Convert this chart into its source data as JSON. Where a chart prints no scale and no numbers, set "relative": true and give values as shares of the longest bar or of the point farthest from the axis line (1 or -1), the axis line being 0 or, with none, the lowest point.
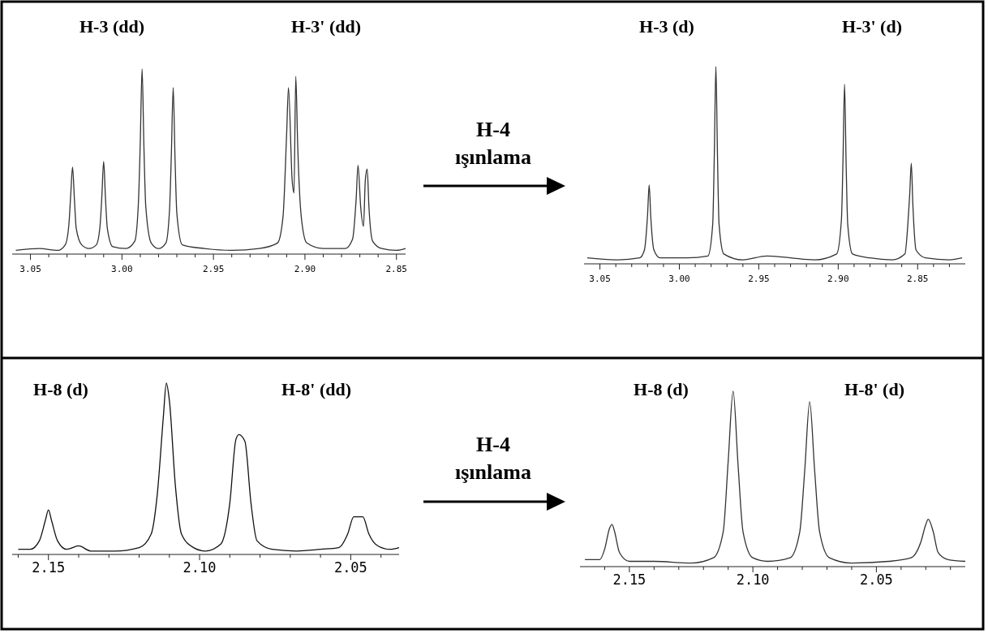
{
  "chart_data": [
    {
      "type": "line",
      "relative": true,
      "color": "#333333",
      "x": [
        3.058,
        3.045,
        3.035,
        3.031,
        3.029,
        3.028,
        3.027,
        3.026,
        3.025,
        3.022,
        3.018,
        3.014,
        3.012,
        3.011,
        3.01,
        3.009,
        3.008,
        3.005,
        2.998,
        2.993,
        2.991,
        2.99,
        2.989,
        2.988,
        2.987,
        2.984,
        2.98,
        2.976,
        2.974,
        2.973,
        2.972,
        2.971,
        2.97,
        2.967,
        2.955,
        2.94,
        2.925,
        2.915,
        2.912,
        2.91,
        2.909,
        2.907,
        2.906,
        2.905,
        2.904,
        2.902,
        2.899,
        2.89,
        2.878,
        2.874,
        2.872,
        2.871,
        2.8695,
        2.868,
        2.867,
        2.866,
        2.865,
        2.863,
        2.858,
        2.85,
        2.845
      ],
      "values": [
        0.02,
        0.03,
        0.02,
        0.05,
        0.16,
        0.32,
        0.47,
        0.3,
        0.14,
        0.05,
        0.03,
        0.05,
        0.15,
        0.31,
        0.5,
        0.3,
        0.14,
        0.04,
        0.03,
        0.07,
        0.28,
        0.6,
        1.0,
        0.58,
        0.26,
        0.06,
        0.03,
        0.06,
        0.24,
        0.54,
        0.9,
        0.52,
        0.22,
        0.05,
        0.03,
        0.02,
        0.03,
        0.06,
        0.2,
        0.65,
        0.9,
        0.4,
        0.33,
        0.96,
        0.6,
        0.2,
        0.06,
        0.03,
        0.03,
        0.08,
        0.3,
        0.48,
        0.25,
        0.15,
        0.4,
        0.46,
        0.25,
        0.07,
        0.03,
        0.02,
        0.03
      ],
      "xlim": [
        3.06,
        2.845
      ],
      "xticks": [
        3.05,
        {
          "value": 3.04,
          "label": null
        },
        {
          "value": 3.03,
          "label": null
        },
        {
          "value": 3.02,
          "label": null
        },
        {
          "value": 3.01,
          "label": null
        },
        {
          "value": 3.0,
          "label": "3.00"
        },
        {
          "value": 2.99,
          "label": null
        },
        {
          "value": 2.98,
          "label": null
        },
        {
          "value": 2.97,
          "label": null
        },
        {
          "value": 2.96,
          "label": null
        },
        2.95,
        {
          "value": 2.94,
          "label": null
        },
        {
          "value": 2.93,
          "label": null
        },
        {
          "value": 2.92,
          "label": null
        },
        {
          "value": 2.91,
          "label": null
        },
        {
          "value": 2.9,
          "label": "2.90"
        },
        {
          "value": 2.89,
          "label": null
        },
        {
          "value": 2.88,
          "label": null
        },
        {
          "value": 2.87,
          "label": null
        },
        {
          "value": 2.86,
          "label": null
        },
        2.85
      ],
      "annotations": [
        "H-3 (dd)",
        "H-3' (dd)"
      ]
    },
    {
      "type": "line",
      "relative": true,
      "color": "#333333",
      "x": [
        3.058,
        3.04,
        3.025,
        3.022,
        3.02,
        3.019,
        3.018,
        3.016,
        3.012,
        2.995,
        2.982,
        2.979,
        2.978,
        2.977,
        2.976,
        2.975,
        2.972,
        2.96,
        2.945,
        2.93,
        2.915,
        2.901,
        2.898,
        2.897,
        2.896,
        2.895,
        2.894,
        2.891,
        2.88,
        2.866,
        2.858,
        2.856,
        2.855,
        2.854,
        2.853,
        2.851,
        2.845,
        2.83,
        2.822
      ],
      "values": [
        0.03,
        0.02,
        0.03,
        0.07,
        0.25,
        0.4,
        0.24,
        0.07,
        0.03,
        0.03,
        0.04,
        0.2,
        0.55,
        1.0,
        0.55,
        0.2,
        0.05,
        0.02,
        0.04,
        0.03,
        0.02,
        0.05,
        0.22,
        0.52,
        0.91,
        0.5,
        0.2,
        0.05,
        0.03,
        0.02,
        0.05,
        0.22,
        0.35,
        0.51,
        0.3,
        0.07,
        0.03,
        0.02,
        0.03
      ],
      "xlim": [
        3.06,
        2.82
      ],
      "xticks": [
        3.05,
        {
          "value": 3.04,
          "label": null
        },
        {
          "value": 3.03,
          "label": null
        },
        {
          "value": 3.02,
          "label": null
        },
        {
          "value": 3.01,
          "label": null
        },
        {
          "value": 3.0,
          "label": "3.00"
        },
        {
          "value": 2.99,
          "label": null
        },
        {
          "value": 2.98,
          "label": null
        },
        {
          "value": 2.97,
          "label": null
        },
        {
          "value": 2.96,
          "label": null
        },
        2.95,
        {
          "value": 2.94,
          "label": null
        },
        {
          "value": 2.93,
          "label": null
        },
        {
          "value": 2.92,
          "label": null
        },
        {
          "value": 2.91,
          "label": null
        },
        {
          "value": 2.9,
          "label": "2.90"
        },
        {
          "value": 2.89,
          "label": null
        },
        {
          "value": 2.88,
          "label": null
        },
        {
          "value": 2.87,
          "label": null
        },
        {
          "value": 2.86,
          "label": null
        },
        2.85,
        {
          "value": 2.84,
          "label": null
        },
        {
          "value": 2.83,
          "label": null
        }
      ],
      "annotations": [
        "H-4",
        "ışınlama",
        "H-3 (d)",
        "H-3' (d)"
      ]
    },
    {
      "type": "line",
      "relative": true,
      "color": "#111111",
      "x": [
        2.16,
        2.156,
        2.153,
        2.151,
        2.15,
        2.149,
        2.147,
        2.144,
        2.14,
        2.136,
        2.128,
        2.12,
        2.116,
        2.114,
        2.112,
        2.111,
        2.11,
        2.108,
        2.106,
        2.102,
        2.098,
        2.093,
        2.09,
        2.088,
        2.087,
        2.085,
        2.083,
        2.081,
        2.076,
        2.068,
        2.06,
        2.054,
        2.051,
        2.049,
        2.046,
        2.044,
        2.041,
        2.037,
        2.034
      ],
      "values": [
        0.03,
        0.03,
        0.08,
        0.2,
        0.26,
        0.2,
        0.08,
        0.03,
        0.05,
        0.02,
        0.02,
        0.04,
        0.12,
        0.35,
        0.8,
        1.0,
        0.9,
        0.4,
        0.12,
        0.04,
        0.02,
        0.06,
        0.3,
        0.67,
        0.7,
        0.66,
        0.3,
        0.08,
        0.03,
        0.02,
        0.03,
        0.04,
        0.12,
        0.22,
        0.22,
        0.12,
        0.05,
        0.03,
        0.04
      ],
      "xlim": [
        2.162,
        2.034
      ],
      "xticks": [
        {
          "value": 2.16,
          "label": null
        },
        2.15,
        {
          "value": 2.14,
          "label": null
        },
        {
          "value": 2.13,
          "label": null
        },
        {
          "value": 2.12,
          "label": null
        },
        {
          "value": 2.11,
          "label": null
        },
        {
          "value": 2.1,
          "label": "2.10"
        },
        {
          "value": 2.09,
          "label": null
        },
        {
          "value": 2.08,
          "label": null
        },
        {
          "value": 2.07,
          "label": null
        },
        {
          "value": 2.06,
          "label": null
        },
        2.05,
        {
          "value": 2.04,
          "label": null
        }
      ],
      "annotations": [
        "H-8 (d)",
        "H-8' (dd)"
      ]
    },
    {
      "type": "line",
      "relative": true,
      "color": "#333333",
      "x": [
        2.168,
        2.162,
        2.16,
        2.158,
        2.157,
        2.156,
        2.154,
        2.15,
        2.14,
        2.125,
        2.116,
        2.112,
        2.11,
        2.108,
        2.106,
        2.104,
        2.1,
        2.094,
        2.085,
        2.081,
        2.079,
        2.077,
        2.075,
        2.073,
        2.069,
        2.06,
        2.045,
        2.036,
        2.032,
        2.03,
        2.029,
        2.027,
        2.025,
        2.021,
        2.014
      ],
      "values": [
        0.04,
        0.04,
        0.1,
        0.22,
        0.24,
        0.2,
        0.08,
        0.03,
        0.03,
        0.02,
        0.05,
        0.2,
        0.6,
        1.0,
        0.58,
        0.2,
        0.05,
        0.03,
        0.05,
        0.2,
        0.55,
        0.94,
        0.55,
        0.2,
        0.05,
        0.02,
        0.03,
        0.05,
        0.14,
        0.24,
        0.27,
        0.2,
        0.08,
        0.04,
        0.03
      ],
      "xlim": [
        2.17,
        2.014
      ],
      "xticks": [
        {
          "value": 2.16,
          "label": null
        },
        2.15,
        {
          "value": 2.14,
          "label": null
        },
        {
          "value": 2.13,
          "label": null
        },
        {
          "value": 2.12,
          "label": null
        },
        {
          "value": 2.11,
          "label": null
        },
        {
          "value": 2.1,
          "label": "2.10"
        },
        {
          "value": 2.09,
          "label": null
        },
        {
          "value": 2.08,
          "label": null
        },
        {
          "value": 2.07,
          "label": null
        },
        {
          "value": 2.06,
          "label": null
        },
        2.05,
        {
          "value": 2.04,
          "label": null
        },
        {
          "value": 2.03,
          "label": null
        },
        {
          "value": 2.02,
          "label": null
        }
      ],
      "annotations": [
        "H-4",
        "ışınlama",
        "H-8 (d)",
        "H-8' (d)"
      ]
    }
  ]
}
